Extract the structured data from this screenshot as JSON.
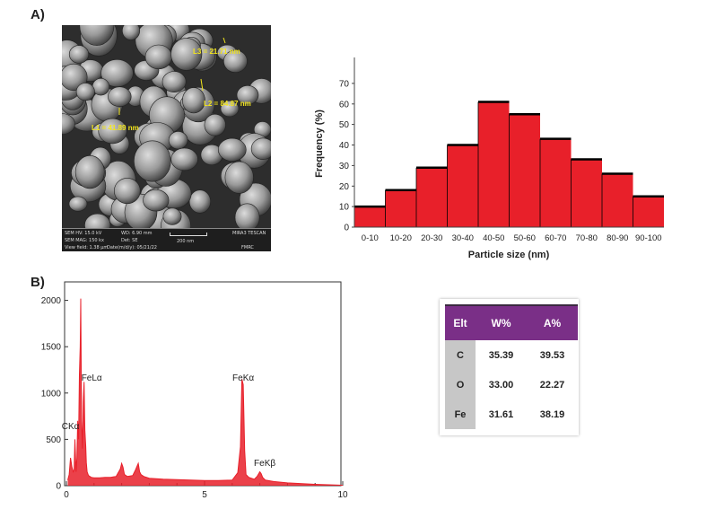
{
  "panels": {
    "a": "A)",
    "b": "B)"
  },
  "sem_image": {
    "measurements": [
      {
        "id": "l1",
        "text": "L1 = 41.89 nm"
      },
      {
        "id": "l2",
        "text": "L2 = 84.87 nm"
      },
      {
        "id": "l3",
        "text": "L3 = 21.71 nm"
      }
    ],
    "info_bar": {
      "hv": "SEM HV: 15.0 kV",
      "wd": "WD: 6.90 mm",
      "mag": "SEM MAG: 150 kx",
      "det": "Det: SE",
      "view": "View field: 1.38 µm",
      "date": "Date(m/d/y): 05/21/22",
      "scale": "200 nm",
      "brand": "MIRA3 TESCAN",
      "lab": "FMRC"
    }
  },
  "chart_data": [
    {
      "type": "bar",
      "title": "",
      "xlabel": "Particle size (nm)",
      "ylabel": "Frequency (%)",
      "categories": [
        "0-10",
        "10-20",
        "20-30",
        "30-40",
        "40-50",
        "50-60",
        "60-70",
        "70-80",
        "80-90",
        "90-100"
      ],
      "values": [
        10,
        18,
        29,
        40,
        61,
        55,
        43,
        33,
        26,
        15
      ],
      "ylim": [
        0,
        80
      ],
      "yticks": [
        0,
        10,
        20,
        30,
        40,
        50,
        60,
        70
      ],
      "bar_color": "#e8202a",
      "grid": false
    },
    {
      "type": "line",
      "title": "",
      "xlabel": "",
      "ylabel": "",
      "xlim": [
        0,
        10
      ],
      "ylim": [
        0,
        2000
      ],
      "xticks": [
        0,
        5,
        10
      ],
      "yticks": [
        0,
        500,
        1000,
        1500,
        2000
      ],
      "line_color": "#e8202a",
      "x": [
        0.05,
        0.1,
        0.15,
        0.2,
        0.25,
        0.28,
        0.31,
        0.35,
        0.38,
        0.41,
        0.44,
        0.47,
        0.5,
        0.52,
        0.55,
        0.58,
        0.61,
        0.64,
        0.67,
        0.7,
        0.72,
        0.75,
        0.8,
        0.9,
        1.0,
        1.2,
        1.4,
        1.6,
        1.8,
        1.95,
        2.0,
        2.05,
        2.1,
        2.2,
        2.4,
        2.5,
        2.6,
        2.65,
        2.7,
        2.8,
        3.0,
        3.5,
        4.0,
        4.5,
        5.0,
        5.5,
        6.0,
        6.2,
        6.3,
        6.35,
        6.4,
        6.45,
        6.5,
        6.6,
        6.8,
        6.9,
        7.0,
        7.05,
        7.1,
        7.2,
        7.5,
        8.0,
        9.0,
        10.0
      ],
      "y": [
        60,
        120,
        300,
        200,
        150,
        170,
        500,
        150,
        300,
        700,
        500,
        1200,
        1500,
        2020,
        700,
        400,
        900,
        1120,
        600,
        420,
        250,
        150,
        110,
        90,
        85,
        85,
        90,
        90,
        100,
        180,
        240,
        200,
        120,
        100,
        110,
        170,
        240,
        150,
        120,
        100,
        80,
        70,
        65,
        60,
        55,
        55,
        60,
        140,
        420,
        1150,
        1090,
        380,
        120,
        90,
        70,
        100,
        150,
        130,
        90,
        60,
        45,
        30,
        15,
        5
      ],
      "annotations": [
        {
          "label": "CKα",
          "x": 0.28
        },
        {
          "label": "FeLα",
          "x": 0.72
        },
        {
          "label": "FeKα",
          "x": 6.4
        },
        {
          "label": "FeKβ",
          "x": 7.05
        }
      ]
    }
  ],
  "composition_table": {
    "headers": [
      "Elt",
      "W%",
      "A%"
    ],
    "rows": [
      [
        "C",
        "35.39",
        "39.53"
      ],
      [
        "O",
        "33.00",
        "22.27"
      ],
      [
        "Fe",
        "31.61",
        "38.19"
      ]
    ]
  }
}
